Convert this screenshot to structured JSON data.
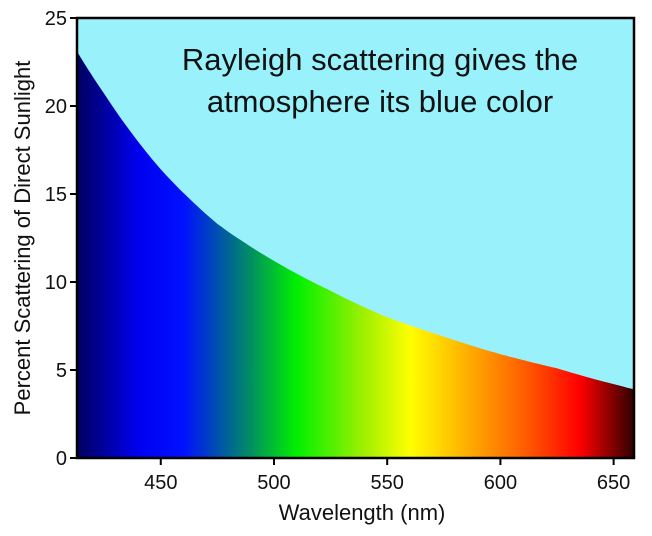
{
  "chart_data": {
    "type": "area",
    "title": "",
    "annotation": [
      "Rayleigh scattering gives the",
      "atmosphere its blue color"
    ],
    "xlabel": "Wavelength (nm)",
    "ylabel": "Percent Scattering of Direct Sunlight",
    "xlim": [
      413,
      659
    ],
    "ylim": [
      0,
      25
    ],
    "x_ticks": [
      450,
      500,
      550,
      600,
      650
    ],
    "y_ticks": [
      0,
      5,
      10,
      15,
      20,
      25
    ],
    "grid": false,
    "legend": null,
    "series": [
      {
        "name": "Rayleigh scattering",
        "x": [
          413,
          425,
          450,
          475,
          500,
          525,
          550,
          575,
          600,
          625,
          650,
          659
        ],
        "values": [
          23.1,
          20.7,
          16.4,
          13.3,
          11.2,
          9.5,
          8.0,
          6.9,
          5.9,
          5.1,
          4.2,
          3.9
        ]
      }
    ],
    "colors": {
      "sky_background": "#99f2fb",
      "spectrum_stops": [
        {
          "nm": 413,
          "color": "#00005e"
        },
        {
          "nm": 440,
          "color": "#0000f0"
        },
        {
          "nm": 460,
          "color": "#0010ff"
        },
        {
          "nm": 490,
          "color": "#009060"
        },
        {
          "nm": 510,
          "color": "#00f000"
        },
        {
          "nm": 540,
          "color": "#a0f000"
        },
        {
          "nm": 560,
          "color": "#ffff00"
        },
        {
          "nm": 580,
          "color": "#ffc000"
        },
        {
          "nm": 610,
          "color": "#ff6000"
        },
        {
          "nm": 635,
          "color": "#ff0000"
        },
        {
          "nm": 659,
          "color": "#300000"
        }
      ]
    }
  }
}
